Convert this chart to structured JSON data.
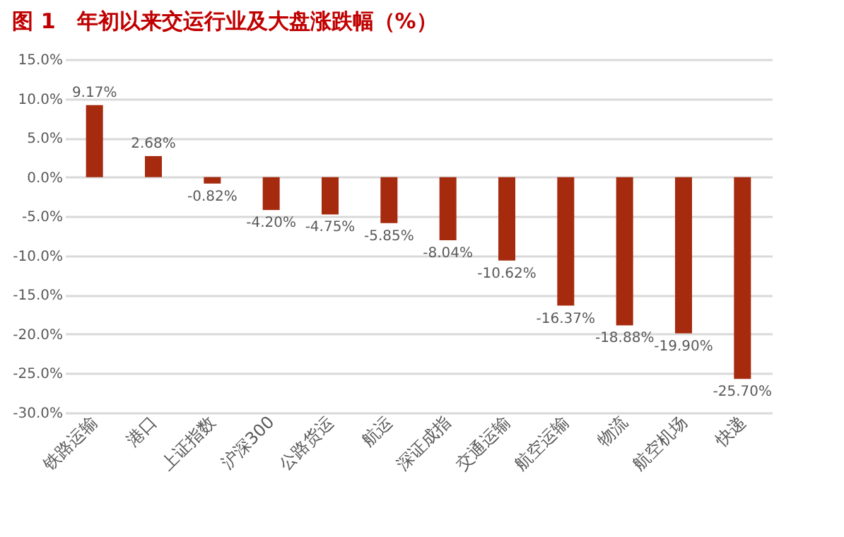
{
  "chart_data": {
    "type": "bar",
    "title": "图 1　年初以来交运行业及大盘涨跌幅（%）",
    "categories": [
      "铁路运输",
      "港口",
      "上证指数",
      "沪深300",
      "公路货运",
      "航运",
      "深证成指",
      "交通运输",
      "航空运输",
      "物流",
      "航空机场",
      "快递"
    ],
    "values": [
      9.17,
      2.68,
      -0.82,
      -4.2,
      -4.75,
      -5.85,
      -8.04,
      -10.62,
      -16.37,
      -18.88,
      -19.9,
      -25.7
    ],
    "color": "#a52a0e",
    "ylim": [
      -30,
      15
    ],
    "yticks": [
      {
        "value": -30,
        "label": "-30.0%"
      },
      {
        "value": -25,
        "label": "-25.0%"
      },
      {
        "value": -20,
        "label": "-20.0%"
      },
      {
        "value": -15,
        "label": "-15.0%"
      },
      {
        "value": -10,
        "label": "-10.0%"
      },
      {
        "value": -5,
        "label": "-5.0%"
      },
      {
        "value": 0,
        "label": "0.0%"
      },
      {
        "value": 5,
        "label": "5.0%"
      },
      {
        "value": 10,
        "label": "10.0%"
      },
      {
        "value": 15,
        "label": "15.0%"
      }
    ],
    "grid": "y",
    "value_labels": [
      "9.17%",
      "2.68%",
      "-0.82%",
      "-4.20%",
      "-4.75%",
      "-5.85%",
      "-8.04%",
      "-10.62%",
      "-16.37%",
      "-18.88%",
      "-19.90%",
      "-25.70%"
    ]
  }
}
